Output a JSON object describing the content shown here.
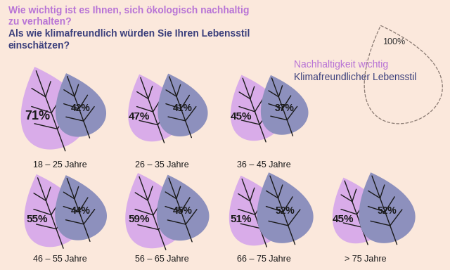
{
  "chart_data": {
    "type": "proportional_area",
    "title": "Wie wichtig ist es Ihnen, sich ökologisch nachhaltig zu verhalten?",
    "subtitle": "Als wie klimafreundlich würden Sie Ihren Lebensstil einschätzen?",
    "categories": [
      "18 – 25 Jahre",
      "26 – 35 Jahre",
      "36 – 45 Jahre",
      "46 – 55 Jahre",
      "56 – 65 Jahre",
      "66 – 75 Jahre",
      "> 75 Jahre"
    ],
    "series": [
      {
        "name": "Nachhaltigkeit wichtig",
        "color": "#d9ace9",
        "values": [
          71,
          47,
          45,
          55,
          59,
          51,
          45
        ],
        "value_labels": [
          "71%",
          "47%",
          "45%",
          "55%",
          "59%",
          "51%",
          "45%"
        ]
      },
      {
        "name": "Klimafreundlicher Lebensstil",
        "color": "#8d90bd",
        "values": [
          42,
          41,
          37,
          44,
          45,
          52,
          52
        ],
        "value_labels": [
          "42%",
          "41%",
          "37%",
          "44%",
          "45%",
          "52%",
          "52%"
        ]
      }
    ],
    "reference": {
      "value": 100,
      "label": "100%"
    },
    "data_labels": true,
    "tick_labels": false
  }
}
